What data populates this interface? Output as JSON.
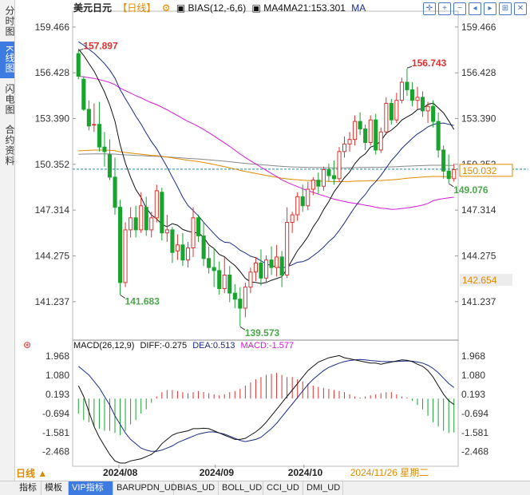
{
  "sidebar": {
    "tabs": [
      {
        "label": "分时图",
        "active": false
      },
      {
        "label": "K线图",
        "active": true
      },
      {
        "label": "闪电图",
        "active": false
      },
      {
        "label": "合约资料",
        "active": false
      }
    ]
  },
  "header": {
    "symbol": "美元日元",
    "period": "【日线】",
    "bias": "BIAS(12,-6,6)",
    "ma_text": "MA4MA21:153.301",
    "ma_label": "MA"
  },
  "macd_header": {
    "title": "MACD(26,12,9)",
    "diff": "DIFF:-0.275",
    "dea": "DEA:0.513",
    "macd": "MACD:-1.577"
  },
  "period_selector": "日线 ▲",
  "date_readout": "2024/11/26 星期二",
  "bottom_tabs": [
    "指标",
    "模板",
    "VIP指标",
    "BARUPDN_UD",
    "BIAS_UD",
    "BOLL_UD",
    "CCI_UD",
    "DMI_UD"
  ],
  "colors": {
    "up": "#e0322e",
    "down": "#19a32f",
    "ma_black": "#111111",
    "ma_navy": "#1a2a8c",
    "ma_magenta": "#d61ad6",
    "ma_orange": "#e08a00",
    "ma_gray": "#888888"
  },
  "chart_data": {
    "type": "candlestick",
    "price_ticks": [
      "159.466",
      "156.428",
      "153.390",
      "150.352",
      "147.314",
      "144.275",
      "141.237"
    ],
    "price_range": [
      139.0,
      160.2
    ],
    "x_labels": [
      "2024/08",
      "2024/09",
      "2024/10"
    ],
    "current_price": "150.032",
    "right_label_142": "142.654",
    "annotations": [
      {
        "text": "157.897",
        "value": 157.897
      },
      {
        "text": "141.683",
        "value": 141.683
      },
      {
        "text": "139.573",
        "value": 139.573
      },
      {
        "text": "156.743",
        "value": 156.743
      },
      {
        "text": "149.076",
        "value": 149.076
      }
    ],
    "candles": [
      [
        157.7,
        157.9,
        156.2,
        156.0
      ],
      [
        156.0,
        156.2,
        154.0,
        153.9
      ],
      [
        154.0,
        154.6,
        152.9,
        152.6
      ],
      [
        153.0,
        154.4,
        153.0,
        152.5
      ],
      [
        153.0,
        154.5,
        151.5,
        151.2
      ],
      [
        151.5,
        152.5,
        151.2,
        150.2
      ],
      [
        151.0,
        152.0,
        149.5,
        149.3
      ],
      [
        149.5,
        150.8,
        147.5,
        147.0
      ],
      [
        147.5,
        148.0,
        142.5,
        141.7
      ],
      [
        142.5,
        146.5,
        146.0,
        142.2
      ],
      [
        146.0,
        147.5,
        146.8,
        145.5
      ],
      [
        146.8,
        147.6,
        146.0,
        145.5
      ],
      [
        146.0,
        148.5,
        147.6,
        145.8
      ],
      [
        147.5,
        148.2,
        146.0,
        145.6
      ],
      [
        146.0,
        147.2,
        146.8,
        145.5
      ],
      [
        146.8,
        149.0,
        148.6,
        146.5
      ],
      [
        148.5,
        148.8,
        145.8,
        145.3
      ],
      [
        145.8,
        147.0,
        146.0,
        145.2
      ],
      [
        146.0,
        146.2,
        144.5,
        143.8
      ],
      [
        144.6,
        145.7,
        145.0,
        144.0
      ],
      [
        145.0,
        145.8,
        144.0,
        143.6
      ],
      [
        144.0,
        145.2,
        144.8,
        143.5
      ],
      [
        144.8,
        147.5,
        146.8,
        144.2
      ],
      [
        146.8,
        147.0,
        145.6,
        145.2
      ],
      [
        145.6,
        146.5,
        144.1,
        143.6
      ],
      [
        144.1,
        144.9,
        143.5,
        143.1
      ],
      [
        143.5,
        144.8,
        143.3,
        142.2
      ],
      [
        143.3,
        143.9,
        142.1,
        141.7
      ],
      [
        142.1,
        144.2,
        143.0,
        141.8
      ],
      [
        143.0,
        143.6,
        141.8,
        141.2
      ],
      [
        141.8,
        142.4,
        141.4,
        140.8
      ],
      [
        141.4,
        142.2,
        140.8,
        139.6
      ],
      [
        140.8,
        142.5,
        142.2,
        140.2
      ],
      [
        142.2,
        143.5,
        143.2,
        141.8
      ],
      [
        143.2,
        144.2,
        143.8,
        142.6
      ],
      [
        143.8,
        144.7,
        142.8,
        142.3
      ],
      [
        142.8,
        144.3,
        144.0,
        142.5
      ],
      [
        144.0,
        144.9,
        143.5,
        143.0
      ],
      [
        143.5,
        145.0,
        144.2,
        142.9
      ],
      [
        144.2,
        144.6,
        143.0,
        142.2
      ],
      [
        143.0,
        147.5,
        146.5,
        142.8
      ],
      [
        146.5,
        147.2,
        147.0,
        145.8
      ],
      [
        147.0,
        148.5,
        148.2,
        146.6
      ],
      [
        148.2,
        149.0,
        147.6,
        147.2
      ],
      [
        147.6,
        149.2,
        148.7,
        147.3
      ],
      [
        148.7,
        149.5,
        149.3,
        148.3
      ],
      [
        149.3,
        149.8,
        148.9,
        148.4
      ],
      [
        148.9,
        150.2,
        150.0,
        148.6
      ],
      [
        150.0,
        150.4,
        149.6,
        149.2
      ],
      [
        149.6,
        150.6,
        149.4,
        149.0
      ],
      [
        149.4,
        151.5,
        151.2,
        149.2
      ],
      [
        151.2,
        152.2,
        151.7,
        150.8
      ],
      [
        151.7,
        152.5,
        152.0,
        151.2
      ],
      [
        152.0,
        153.6,
        153.2,
        151.6
      ],
      [
        153.2,
        153.8,
        152.7,
        152.3
      ],
      [
        152.7,
        153.0,
        151.8,
        151.3
      ],
      [
        151.8,
        153.6,
        153.3,
        151.6
      ],
      [
        153.3,
        153.7,
        151.3,
        151.0
      ],
      [
        151.3,
        152.8,
        152.5,
        151.1
      ],
      [
        152.5,
        154.8,
        154.4,
        152.3
      ],
      [
        154.4,
        154.7,
        153.3,
        153.0
      ],
      [
        153.3,
        155.1,
        154.6,
        153.1
      ],
      [
        154.6,
        156.1,
        155.8,
        154.4
      ],
      [
        155.8,
        156.7,
        155.3,
        154.9
      ],
      [
        155.3,
        155.8,
        154.6,
        154.2
      ],
      [
        154.6,
        155.5,
        154.8,
        154.0
      ],
      [
        154.8,
        155.2,
        153.9,
        153.5
      ],
      [
        153.9,
        154.5,
        154.2,
        153.1
      ],
      [
        154.2,
        154.6,
        153.2,
        152.8
      ],
      [
        153.2,
        153.8,
        151.3,
        150.8
      ],
      [
        151.3,
        151.6,
        149.9,
        149.4
      ],
      [
        149.9,
        151.0,
        149.4,
        149.1
      ],
      [
        149.4,
        150.4,
        150.0,
        149.2
      ]
    ],
    "macd": {
      "ticks": [
        "1.968",
        "1.080",
        "0.193",
        "-0.694",
        "-1.581",
        "-2.468"
      ],
      "range": [
        -3.0,
        2.2
      ],
      "hist": [
        -0.7,
        -1.0,
        -1.1,
        -1.3,
        -1.4,
        -1.5,
        -1.5,
        -1.6,
        -1.7,
        -1.5,
        -1.2,
        -1.0,
        -0.7,
        -0.5,
        -0.2,
        0.1,
        0.3,
        0.4,
        0.4,
        0.35,
        0.3,
        0.25,
        0.3,
        0.35,
        0.3,
        0.25,
        0.2,
        0.15,
        0.2,
        0.3,
        0.35,
        0.45,
        0.6,
        0.75,
        0.9,
        1.0,
        1.1,
        1.15,
        1.2,
        1.1,
        1.0,
        1.0,
        0.9,
        0.8,
        0.7,
        0.6,
        0.55,
        0.5,
        0.45,
        0.4,
        0.35,
        0.3,
        0.2,
        0.1,
        0.05,
        0.1,
        0.15,
        0.2,
        0.25,
        0.3,
        0.3,
        0.2,
        0.1,
        0.05,
        -0.1,
        -0.3,
        -0.5,
        -0.8,
        -1.1,
        -1.3,
        -1.5,
        -1.6,
        -1.58
      ],
      "diff": [
        0.6,
        0.1,
        -0.6,
        -1.3,
        -1.8,
        -2.2,
        -2.6,
        -2.9,
        -3.0,
        -3.0,
        -2.9,
        -2.85,
        -2.8,
        -2.7,
        -2.6,
        -2.4,
        -2.1,
        -1.9,
        -1.7,
        -1.6,
        -1.55,
        -1.5,
        -1.4,
        -1.4,
        -1.38,
        -1.4,
        -1.5,
        -1.6,
        -1.7,
        -1.8,
        -1.9,
        -1.9,
        -1.85,
        -1.7,
        -1.55,
        -1.35,
        -1.1,
        -0.8,
        -0.5,
        -0.2,
        0.1,
        0.4,
        0.7,
        1.0,
        1.3,
        1.5,
        1.7,
        1.8,
        1.9,
        1.95,
        2.0,
        1.9,
        1.85,
        1.8,
        1.75,
        1.7,
        1.65,
        1.65,
        1.6,
        1.65,
        1.7,
        1.75,
        1.8,
        1.78,
        1.72,
        1.6,
        1.5,
        1.3,
        1.0,
        0.6,
        0.2,
        -0.1,
        -0.275
      ],
      "dea": [
        1.5,
        1.3,
        1.1,
        0.8,
        0.5,
        0.1,
        -0.3,
        -0.8,
        -1.2,
        -1.6,
        -1.9,
        -2.1,
        -2.3,
        -2.4,
        -2.45,
        -2.45,
        -2.4,
        -2.3,
        -2.2,
        -2.05,
        -1.95,
        -1.85,
        -1.75,
        -1.65,
        -1.6,
        -1.55,
        -1.55,
        -1.6,
        -1.65,
        -1.75,
        -1.85,
        -1.95,
        -2.0,
        -1.95,
        -1.9,
        -1.8,
        -1.6,
        -1.4,
        -1.15,
        -0.85,
        -0.55,
        -0.25,
        0.05,
        0.35,
        0.65,
        0.9,
        1.1,
        1.3,
        1.45,
        1.55,
        1.65,
        1.72,
        1.77,
        1.8,
        1.82,
        1.8,
        1.77,
        1.75,
        1.73,
        1.72,
        1.72,
        1.73,
        1.74,
        1.75,
        1.74,
        1.7,
        1.65,
        1.55,
        1.4,
        1.2,
        0.95,
        0.7,
        0.513
      ]
    }
  }
}
